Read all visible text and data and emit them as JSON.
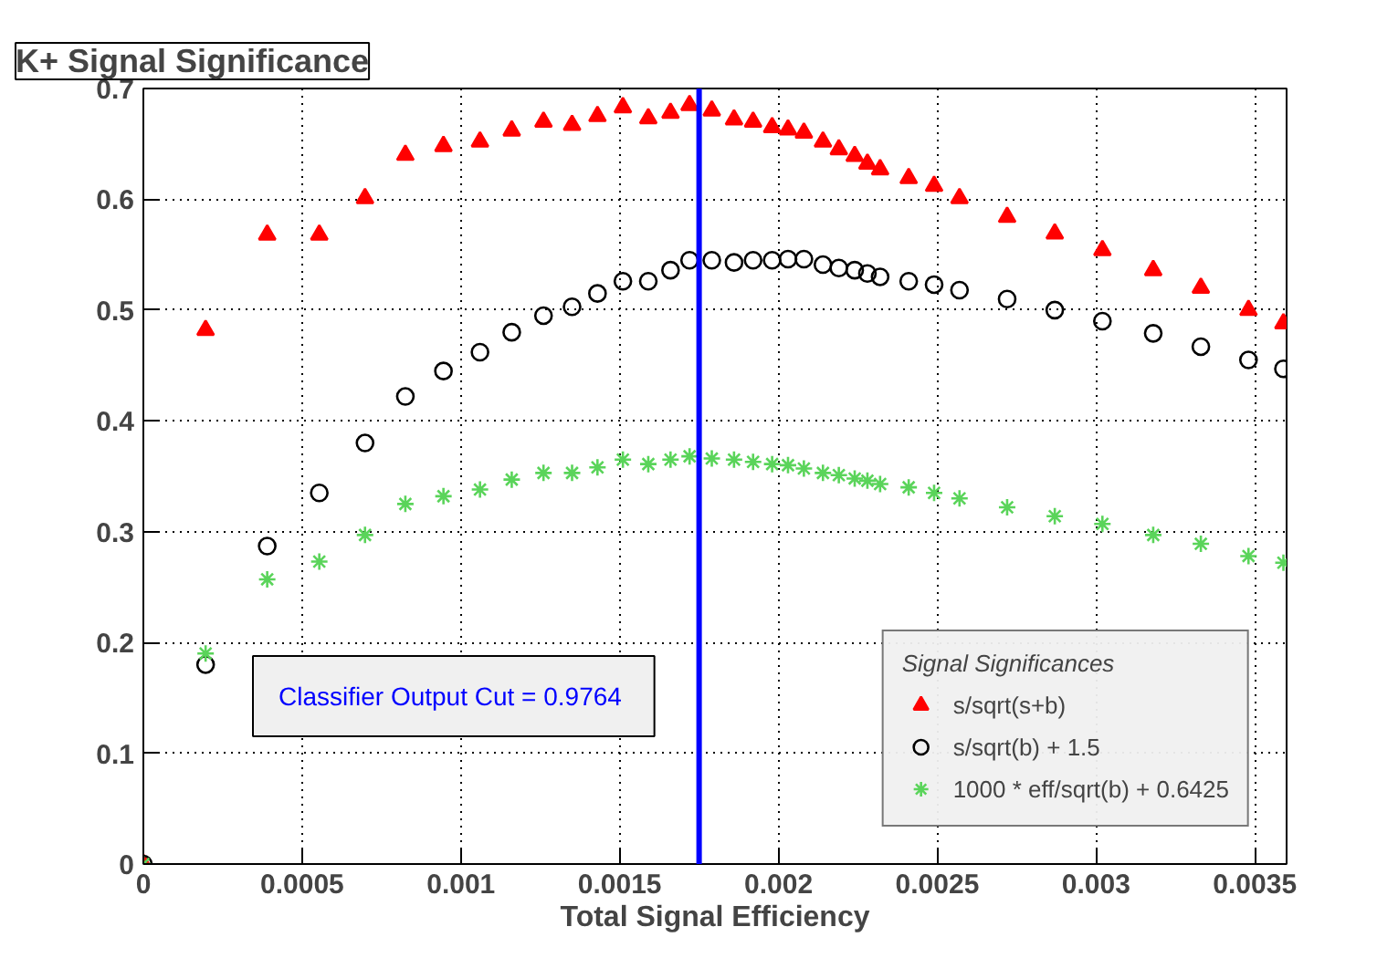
{
  "chart_data": {
    "type": "scatter",
    "title": "K+ Signal Significance",
    "xlabel": "Total Signal Efficiency",
    "legend_title": "Signal Significances",
    "x": [
      0,
      0.000196,
      0.00039,
      0.000554,
      0.000698,
      0.000825,
      0.000945,
      0.00106,
      0.00116,
      0.00126,
      0.00135,
      0.00143,
      0.00151,
      0.00159,
      0.00166,
      0.00172,
      0.00179,
      0.00186,
      0.00192,
      0.00198,
      0.00203,
      0.00208,
      0.00214,
      0.00219,
      0.00224,
      0.00228,
      0.00232,
      0.00241,
      0.00249,
      0.00257,
      0.00272,
      0.00287,
      0.00302,
      0.00318,
      0.00333,
      0.00348,
      0.00359
    ],
    "series": [
      {
        "name": "s/sqrt(s+b)",
        "color": "#ff0000",
        "marker": "triangle",
        "values": [
          0,
          0.482,
          0.568,
          0.568,
          0.601,
          0.64,
          0.648,
          0.652,
          0.662,
          0.67,
          0.667,
          0.675,
          0.683,
          0.673,
          0.678,
          0.685,
          0.68,
          0.672,
          0.67,
          0.665,
          0.663,
          0.66,
          0.652,
          0.645,
          0.639,
          0.632,
          0.627,
          0.619,
          0.612,
          0.601,
          0.584,
          0.569,
          0.554,
          0.536,
          0.52,
          0.5,
          0.488
        ]
      },
      {
        "name": "s/sqrt(b) + 1.5",
        "color": "#000000",
        "marker": "circle",
        "values": [
          0,
          0.18,
          0.287,
          0.335,
          0.38,
          0.422,
          0.445,
          0.462,
          0.48,
          0.495,
          0.503,
          0.515,
          0.526,
          0.526,
          0.536,
          0.545,
          0.545,
          0.543,
          0.545,
          0.545,
          0.546,
          0.546,
          0.541,
          0.538,
          0.536,
          0.533,
          0.53,
          0.526,
          0.523,
          0.518,
          0.51,
          0.5,
          0.49,
          0.479,
          0.467,
          0.455,
          0.447
        ]
      },
      {
        "name": "1000 * eff/sqrt(b) + 0.6425",
        "color": "#5ad45a",
        "marker": "cross",
        "values": [
          0,
          0.19,
          0.257,
          0.273,
          0.297,
          0.325,
          0.332,
          0.338,
          0.347,
          0.353,
          0.353,
          0.358,
          0.365,
          0.361,
          0.365,
          0.368,
          0.366,
          0.365,
          0.363,
          0.361,
          0.36,
          0.357,
          0.353,
          0.351,
          0.348,
          0.346,
          0.343,
          0.34,
          0.335,
          0.33,
          0.322,
          0.314,
          0.307,
          0.297,
          0.289,
          0.278,
          0.272
        ]
      }
    ],
    "xlim": [
      0,
      0.0036
    ],
    "ylim": [
      0,
      0.7
    ],
    "xticks": [
      0,
      0.0005,
      0.001,
      0.0015,
      0.002,
      0.0025,
      0.003,
      0.0035
    ],
    "yticks": [
      0,
      0.1,
      0.2,
      0.3,
      0.4,
      0.5,
      0.6,
      0.7
    ],
    "ref_lines": [
      {
        "axis": "x",
        "value": 0.00175,
        "color": "#0000ff"
      }
    ],
    "annotations": [
      "Classifier Output Cut =  0.9764"
    ],
    "grid": true,
    "legend": "bottom right"
  }
}
